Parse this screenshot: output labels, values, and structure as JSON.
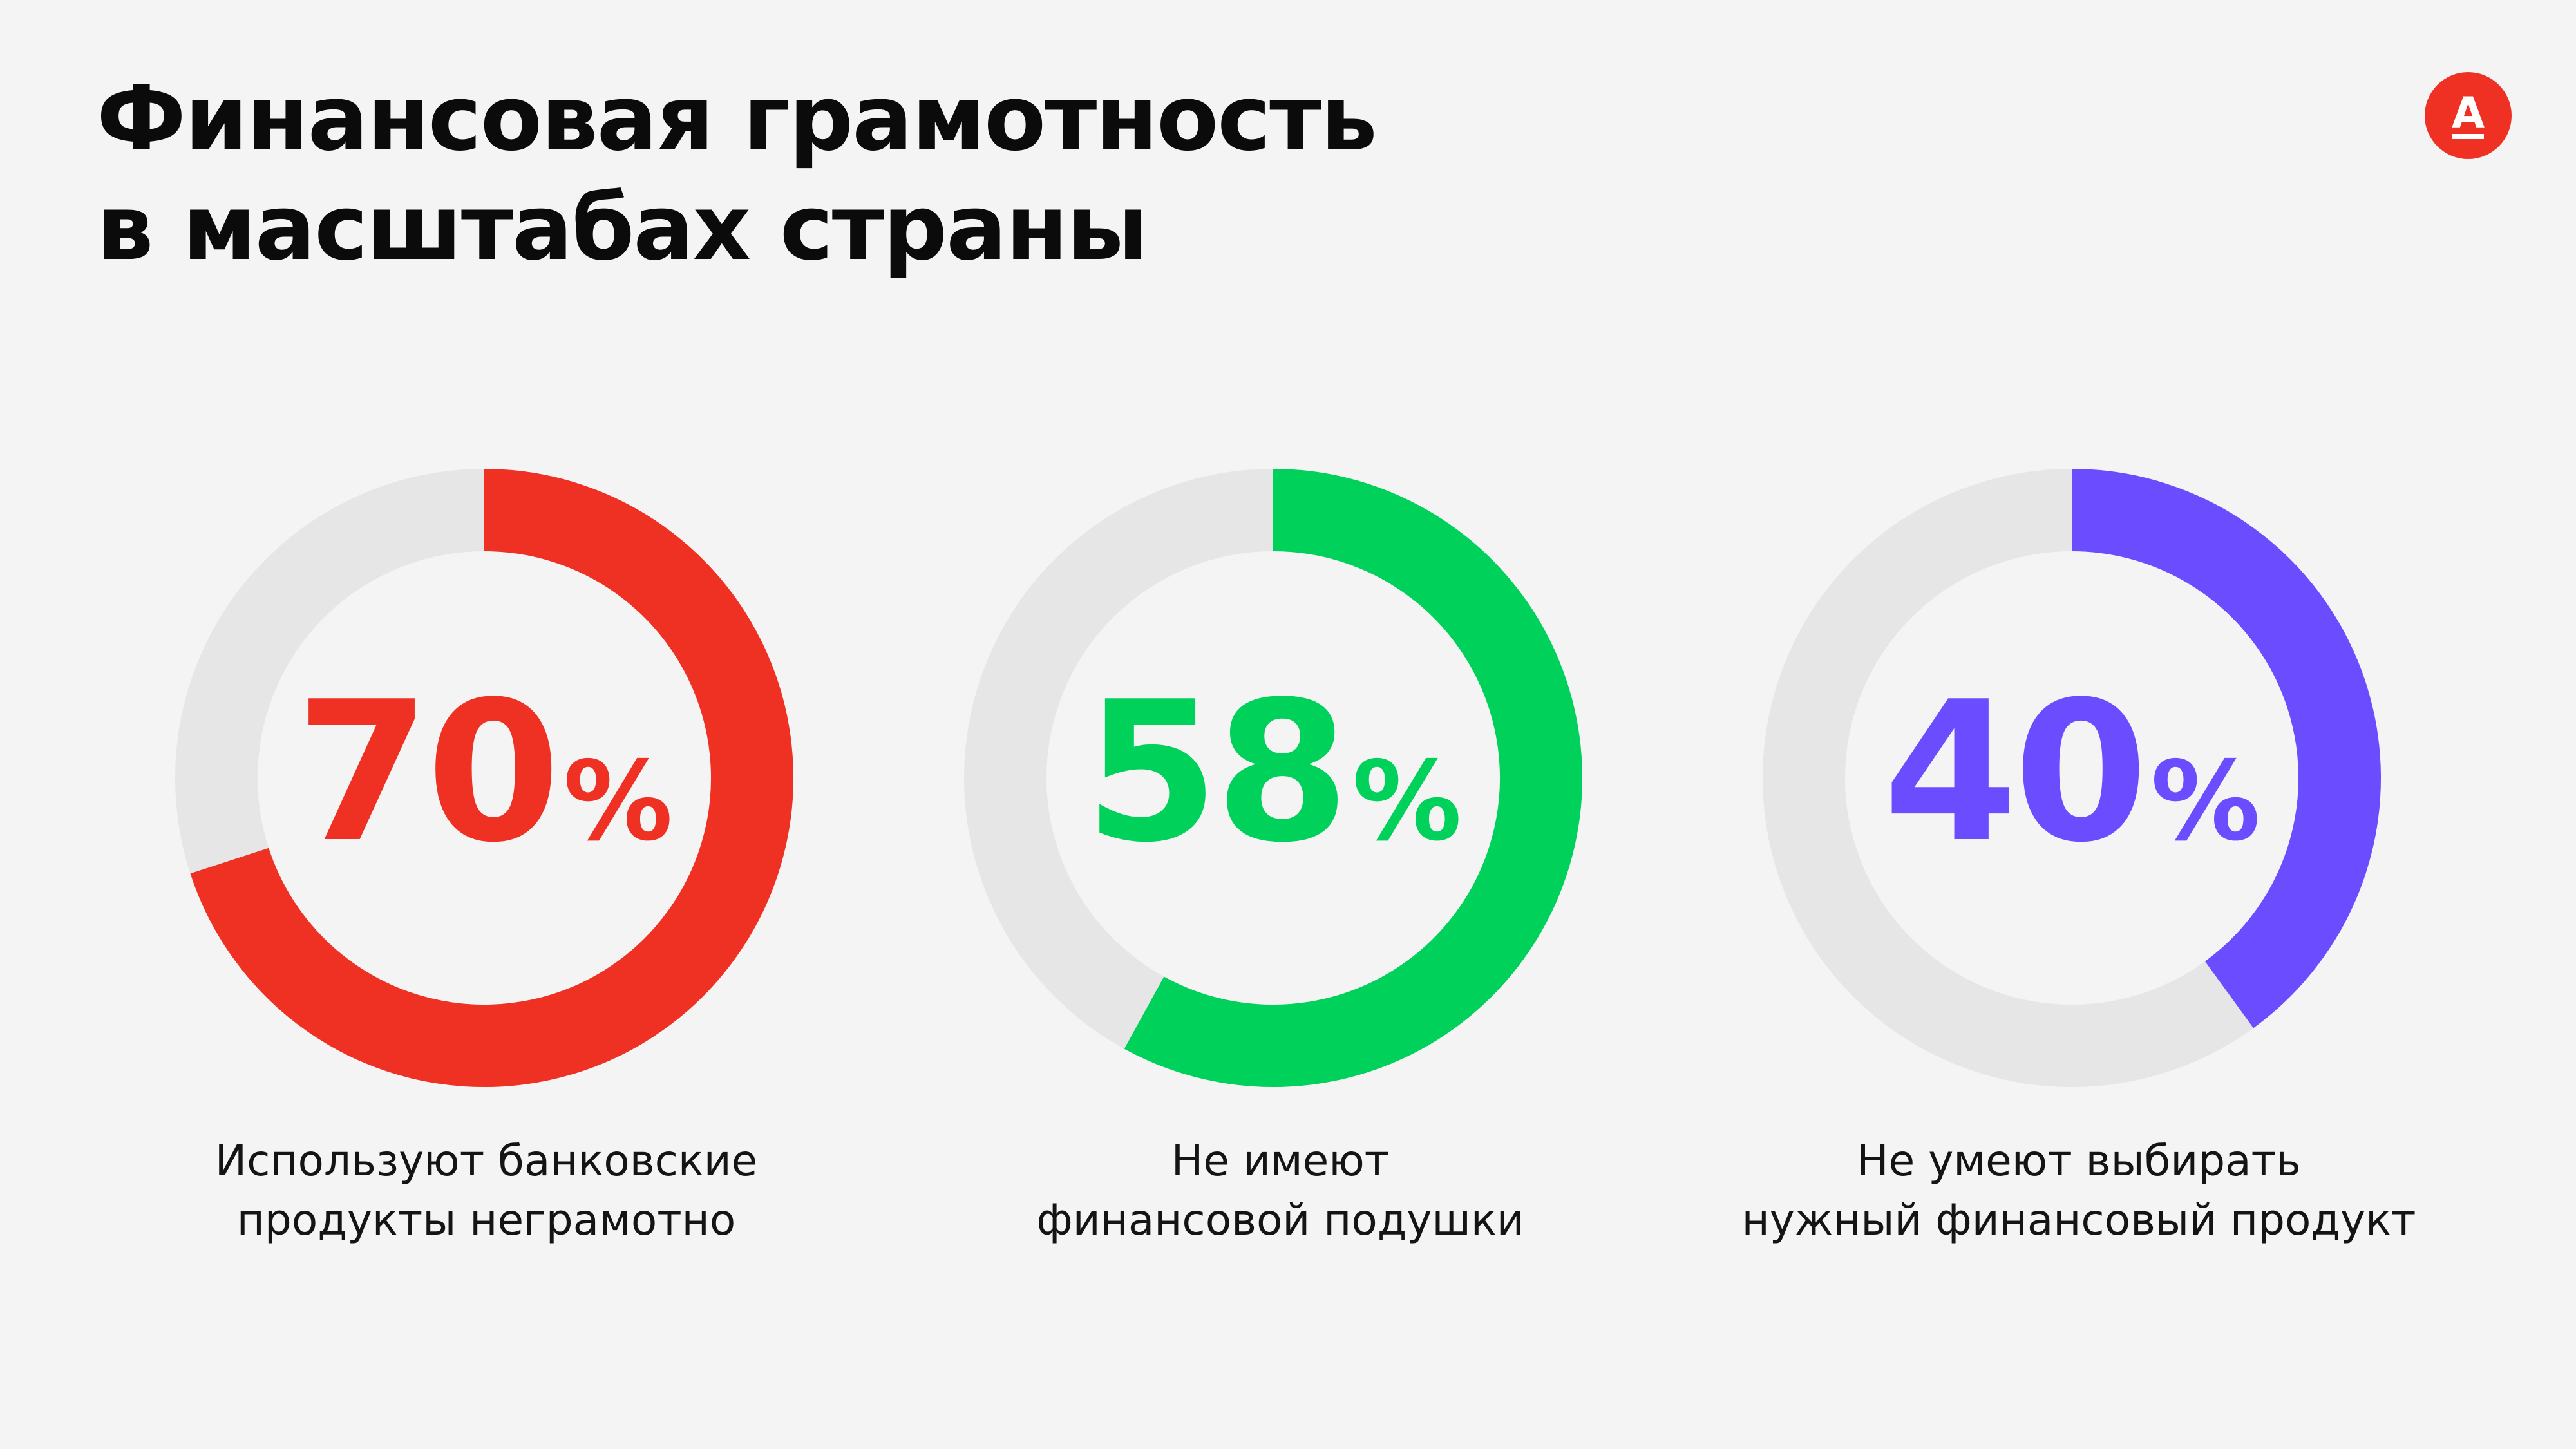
{
  "header": {
    "title_lines": [
      "Финансовая грамотность",
      "в масштабах страны"
    ]
  },
  "logo": {
    "glyph": "А",
    "icon": "alfa-bank-logo-icon",
    "color": "#ef3124"
  },
  "colors": {
    "track": "#e6e6e6",
    "background": "#f4f4f4"
  },
  "chart_data": [
    {
      "type": "pie",
      "values": [
        70
      ],
      "value_label": "70",
      "unit": "%",
      "color": "#ef3124",
      "caption_lines": [
        "Используют банковские",
        "продукты неграмотно"
      ]
    },
    {
      "type": "pie",
      "values": [
        58
      ],
      "value_label": "58",
      "unit": "%",
      "color": "#00d15a",
      "caption_lines": [
        "Не имеют",
        "финансовой подушки"
      ]
    },
    {
      "type": "pie",
      "values": [
        40
      ],
      "value_label": "40",
      "unit": "%",
      "color": "#6b4dff",
      "caption_lines": [
        "Не умеют выбирать",
        "нужный финансовый продукт"
      ]
    }
  ]
}
